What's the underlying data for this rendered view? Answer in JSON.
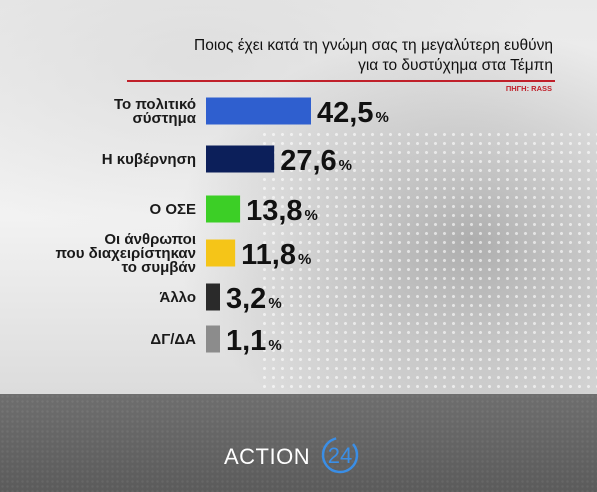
{
  "title_lines": [
    "Ποιος έχει κατά τη γνώμη σας τη μεγαλύτερη ευθύνη",
    "για το δυστύχημα στα Τέμπη"
  ],
  "source": "ΠΗΓΗ: RASS",
  "chart_data": {
    "type": "bar",
    "orientation": "horizontal",
    "categories": [
      [
        "Το πολιτικό",
        "σύστημα"
      ],
      [
        "Η κυβέρνηση"
      ],
      [
        "Ο ΟΣΕ"
      ],
      [
        "Οι άνθρωποι",
        "που διαχειρίστηκαν",
        "το συμβάν"
      ],
      [
        "Άλλο"
      ],
      [
        "ΔΓ/ΔΑ"
      ]
    ],
    "values": [
      42.5,
      27.6,
      13.8,
      11.8,
      3.2,
      1.1
    ],
    "value_labels": [
      "42,5",
      "27,6",
      "13,8",
      "11,8",
      "3,2",
      "1,1"
    ],
    "unit": "%",
    "colors": [
      "#2f5fcf",
      "#0c1f5a",
      "#3ccf26",
      "#f5c518",
      "#2a2a2a",
      "#8c8c8c"
    ],
    "xlim": [
      0,
      42.5
    ],
    "grid": false,
    "legend": "none"
  },
  "footer": {
    "brand_text": "ACTION",
    "brand_number": "24",
    "brand_color": "#3a8ee6"
  }
}
